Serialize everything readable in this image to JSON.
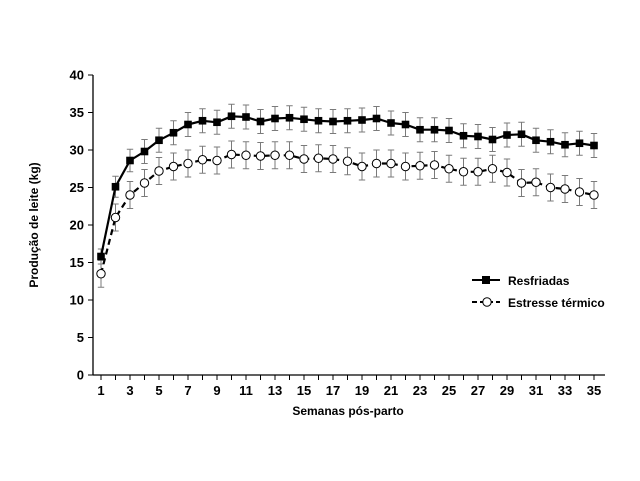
{
  "chart_data": {
    "type": "line",
    "xlabel": "Semanas pós-parto",
    "ylabel": "Produção de leite (kg)",
    "xlim": [
      1,
      35
    ],
    "ylim": [
      0,
      40
    ],
    "xticks": [
      "1",
      "3",
      "5",
      "7",
      "9",
      "11",
      "13",
      "15",
      "17",
      "19",
      "21",
      "23",
      "25",
      "27",
      "29",
      "31",
      "33",
      "35"
    ],
    "yticks": [
      "0",
      "5",
      "10",
      "15",
      "20",
      "25",
      "30",
      "35",
      "40"
    ],
    "legend_position": "right",
    "grid": false,
    "x": [
      1,
      2,
      3,
      4,
      5,
      6,
      7,
      8,
      9,
      10,
      11,
      12,
      13,
      14,
      15,
      16,
      17,
      18,
      19,
      20,
      21,
      22,
      23,
      24,
      25,
      26,
      27,
      28,
      29,
      30,
      31,
      32,
      33,
      34,
      35
    ],
    "series": [
      {
        "name": "Resfriadas",
        "marker": "filled-square",
        "line": "solid",
        "color": "#000000",
        "values": [
          15.8,
          25.1,
          28.6,
          29.8,
          31.3,
          32.3,
          33.4,
          33.9,
          33.7,
          34.5,
          34.4,
          33.8,
          34.2,
          34.3,
          34.1,
          33.9,
          33.8,
          33.9,
          34.0,
          34.2,
          33.6,
          33.4,
          32.7,
          32.7,
          32.6,
          31.9,
          31.8,
          31.4,
          32.0,
          32.1,
          31.3,
          31.1,
          30.7,
          30.9,
          30.6
        ],
        "error": [
          1.0,
          1.4,
          1.5,
          1.6,
          1.6,
          1.6,
          1.6,
          1.6,
          1.6,
          1.6,
          1.6,
          1.6,
          1.6,
          1.6,
          1.6,
          1.6,
          1.6,
          1.6,
          1.6,
          1.6,
          1.6,
          1.6,
          1.6,
          1.6,
          1.6,
          1.6,
          1.6,
          1.6,
          1.6,
          1.6,
          1.6,
          1.6,
          1.6,
          1.6,
          1.6
        ]
      },
      {
        "name": "Estresse térmico",
        "marker": "open-circle",
        "line": "dashed",
        "color": "#000000",
        "values": [
          13.5,
          21.0,
          24.0,
          25.6,
          27.2,
          27.8,
          28.2,
          28.7,
          28.6,
          29.4,
          29.3,
          29.2,
          29.3,
          29.3,
          28.8,
          28.9,
          28.8,
          28.5,
          27.8,
          28.2,
          28.2,
          27.8,
          27.9,
          28.0,
          27.5,
          27.1,
          27.1,
          27.5,
          27.0,
          25.6,
          25.7,
          25.0,
          24.8,
          24.4,
          24.0
        ],
        "error": [
          1.8,
          1.8,
          1.8,
          1.8,
          1.8,
          1.8,
          1.8,
          1.8,
          1.8,
          1.8,
          1.8,
          1.8,
          1.8,
          1.8,
          1.8,
          1.8,
          1.8,
          1.8,
          1.8,
          1.8,
          1.8,
          1.8,
          1.8,
          1.8,
          1.8,
          1.8,
          1.8,
          1.8,
          1.8,
          1.8,
          1.8,
          1.8,
          1.8,
          1.8,
          1.8
        ]
      }
    ]
  }
}
